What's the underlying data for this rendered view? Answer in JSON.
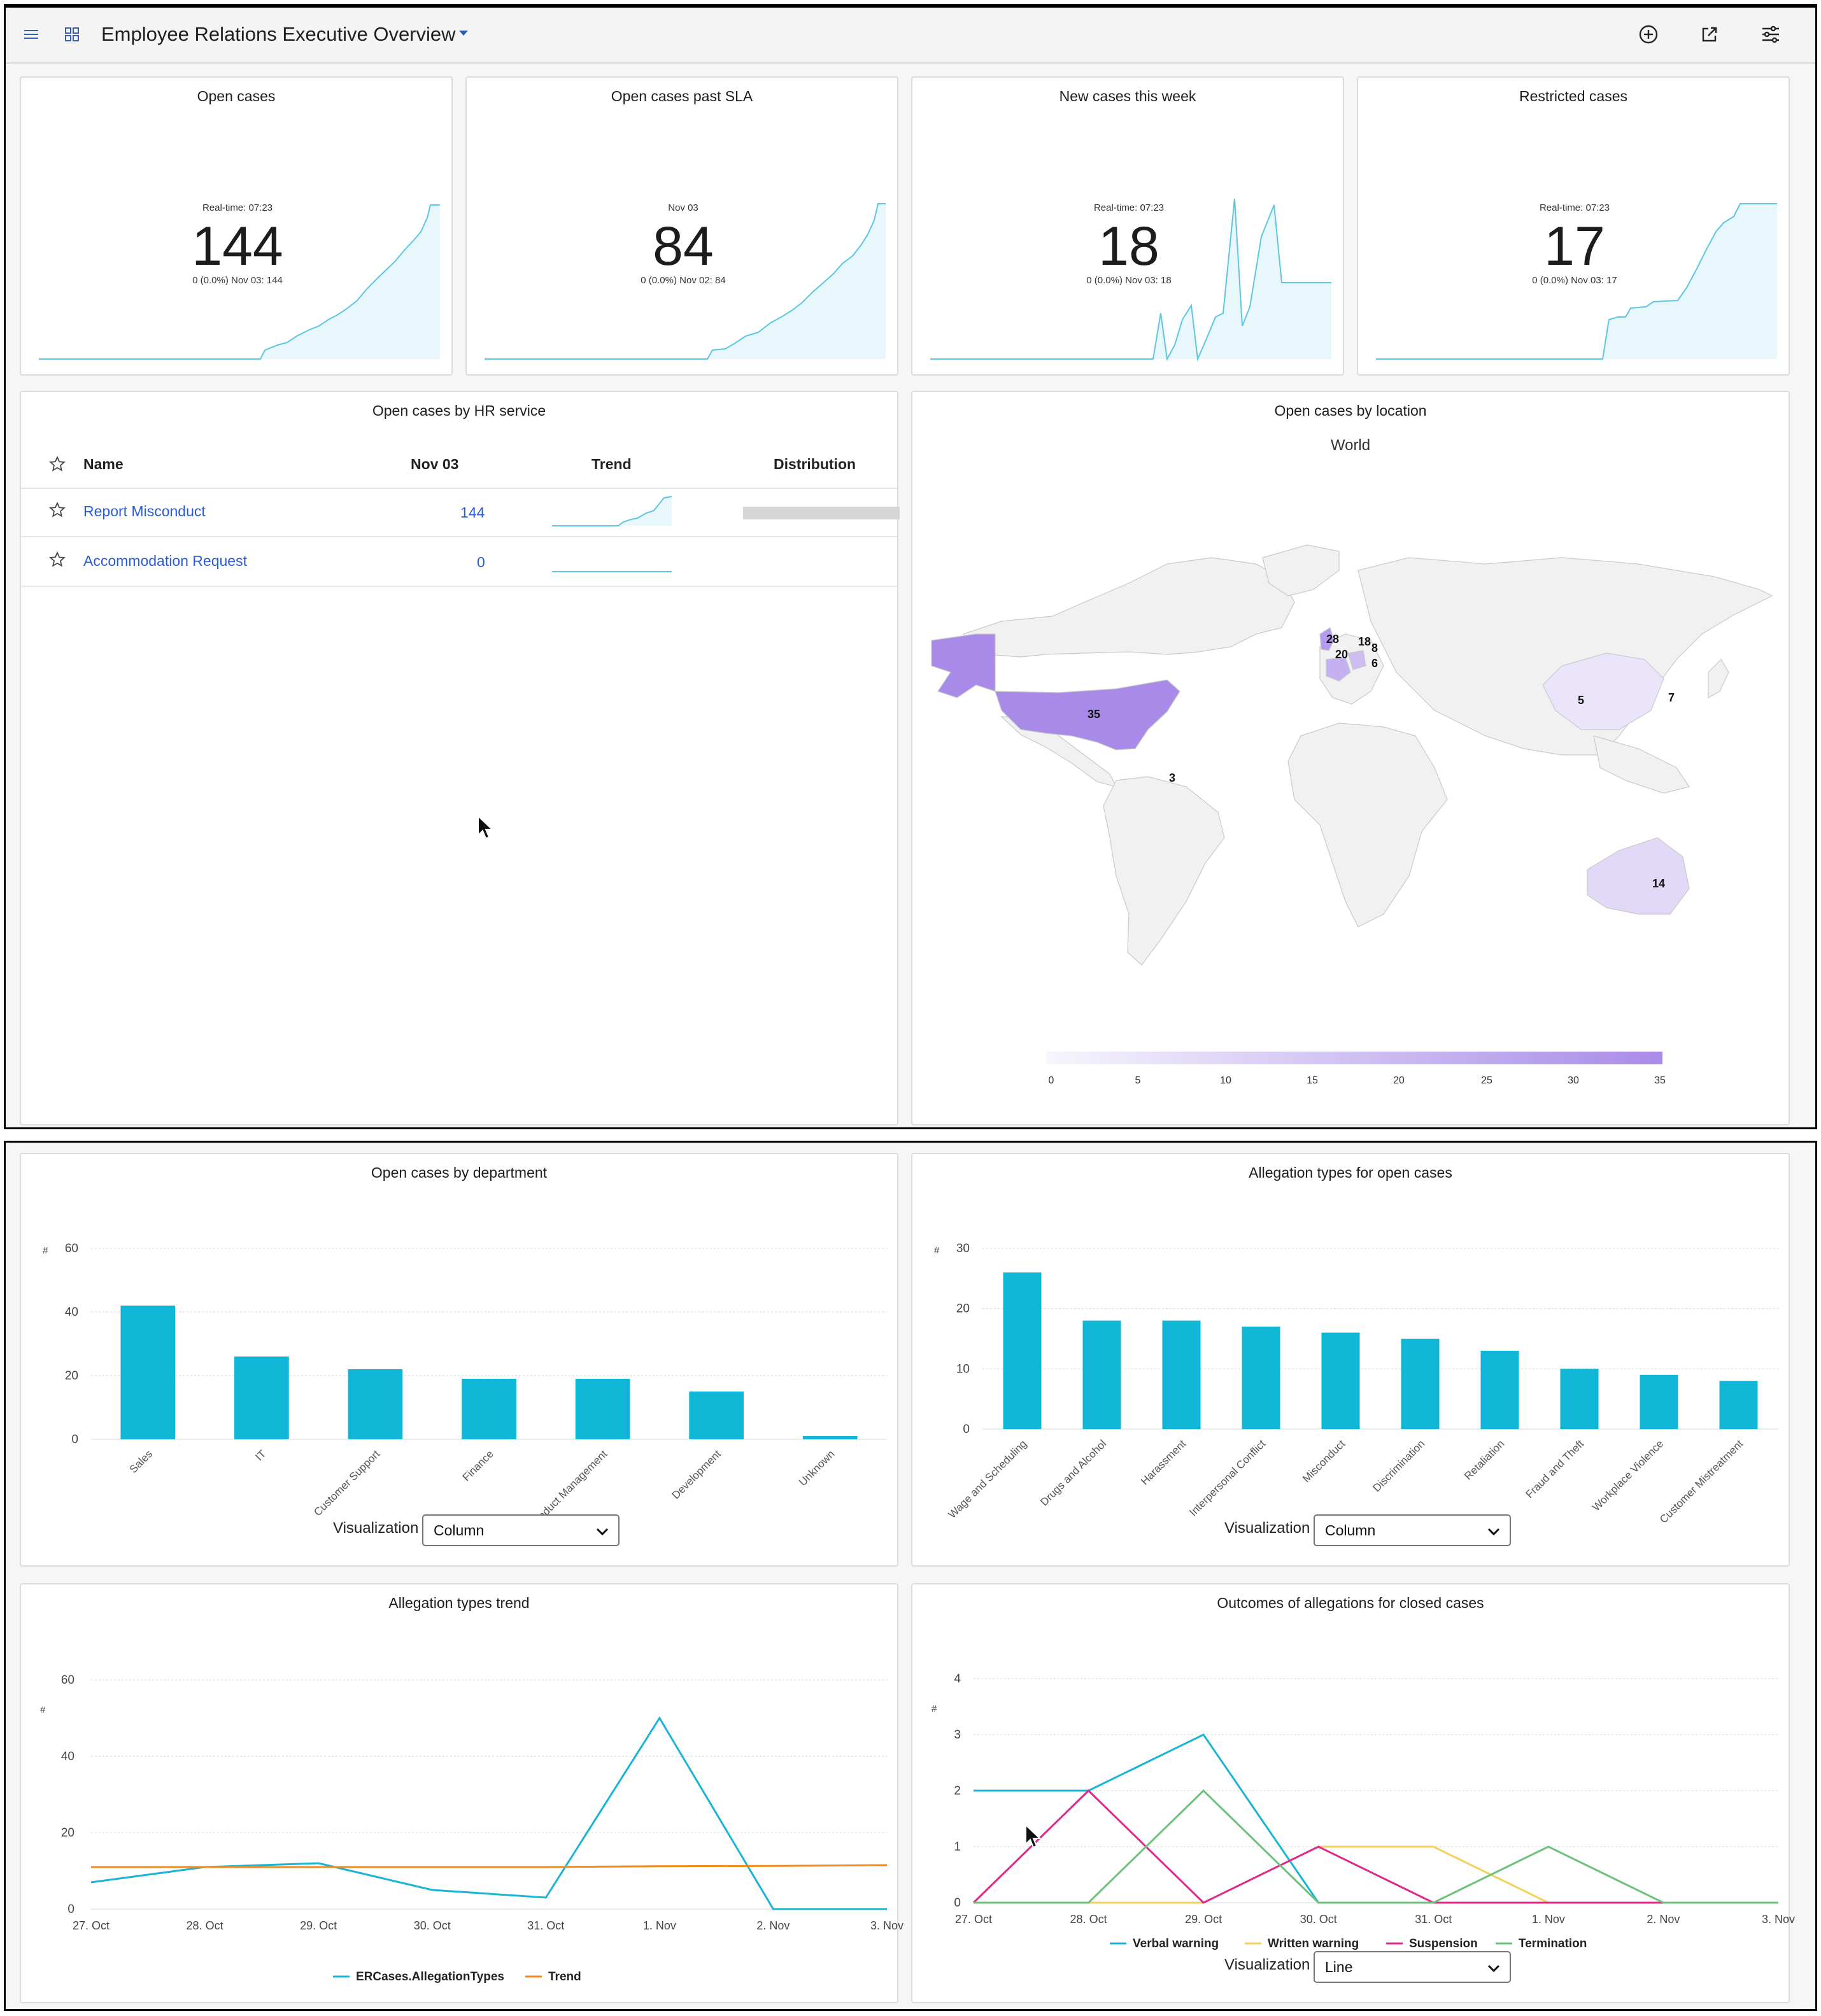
{
  "header": {
    "title": "Employee Relations Executive Overview",
    "menu_icon": "hamburger-icon",
    "grid_icon": "grid-icon",
    "actions": [
      "add-circle-icon",
      "share-icon",
      "filter-settings-icon"
    ]
  },
  "kpis": [
    {
      "title": "Open cases",
      "subtitle": "Real-time: 07:23",
      "value": "144",
      "meta": "0 (0.0%)   Nov 03: 144"
    },
    {
      "title": "Open cases past SLA",
      "subtitle": "Nov 03",
      "value": "84",
      "meta": "0 (0.0%)   Nov 02: 84"
    },
    {
      "title": "New cases this week",
      "subtitle": "Real-time: 07:23",
      "value": "18",
      "meta": "0 (0.0%)   Nov 03: 18"
    },
    {
      "title": "Restricted cases",
      "subtitle": "Real-time: 07:23",
      "value": "17",
      "meta": "0 (0.0%)   Nov 03: 17"
    }
  ],
  "hr_service": {
    "title": "Open cases by HR service",
    "columns": {
      "name": "Name",
      "date": "Nov 03",
      "trend": "Trend",
      "distribution": "Distribution"
    },
    "rows": [
      {
        "name": "Report Misconduct",
        "value": "144",
        "distribution_fraction": 1.0
      },
      {
        "name": "Accommodation Request",
        "value": "0",
        "distribution_fraction": 0.0
      }
    ]
  },
  "location": {
    "title": "Open cases by location",
    "map_title": "World",
    "labels": [
      "35",
      "28",
      "20",
      "18",
      "8",
      "6",
      "5",
      "7",
      "3",
      "14"
    ],
    "legend_ticks": [
      "0",
      "5",
      "10",
      "15",
      "20",
      "25",
      "30",
      "35"
    ],
    "colors": {
      "low": "#f7f5fd",
      "high": "#a88be8",
      "land": "#f1f1f1",
      "border": "#c9c9c9"
    }
  },
  "department": {
    "title": "Open cases by department",
    "viz_label": "Visualization",
    "viz_value": "Column"
  },
  "allegation_types": {
    "title": "Allegation types for open cases",
    "viz_label": "Visualization",
    "viz_value": "Column"
  },
  "allegation_trend": {
    "title": "Allegation types trend"
  },
  "outcomes": {
    "title": "Outcomes of allegations for closed cases",
    "viz_label": "Visualization",
    "viz_value": "Line"
  },
  "chart_data": [
    {
      "type": "bar",
      "title": "Open cases by department",
      "ylabel": "#",
      "categories": [
        "Sales",
        "IT",
        "Customer Support",
        "Finance",
        "Product Management",
        "Development",
        "Unknown"
      ],
      "values": [
        42,
        26,
        22,
        19,
        19,
        15,
        1
      ],
      "ylim": [
        0,
        60
      ],
      "yticks": [
        "0",
        "20",
        "40",
        "60"
      ],
      "color": "#0fb6d6",
      "grid": true
    },
    {
      "type": "bar",
      "title": "Allegation types for open cases",
      "ylabel": "#",
      "categories": [
        "Wage and Scheduling",
        "Drugs and Alcohol",
        "Harassment",
        "Interpersonal Conflict",
        "Misconduct",
        "Discrimination",
        "Retaliation",
        "Fraud and Theft",
        "Workplace Violence",
        "Customer Mistreatment"
      ],
      "values": [
        26,
        18,
        18,
        17,
        16,
        15,
        13,
        10,
        9,
        8
      ],
      "ylim": [
        0,
        30
      ],
      "yticks": [
        "0",
        "10",
        "20",
        "30"
      ],
      "color": "#0fb6d6",
      "grid": true
    },
    {
      "type": "line",
      "title": "Allegation types trend",
      "ylabel": "#",
      "x": [
        "27. Oct",
        "28. Oct",
        "29. Oct",
        "30. Oct",
        "31. Oct",
        "1. Nov",
        "2. Nov",
        "3. Nov"
      ],
      "ylim": [
        0,
        60
      ],
      "yticks": [
        "0",
        "20",
        "40",
        "60"
      ],
      "series": [
        {
          "name": "ERCases.AllegationTypes",
          "values": [
            7,
            11,
            12,
            5,
            3,
            50,
            0,
            0
          ],
          "color": "#19b4d6"
        },
        {
          "name": "Trend",
          "values": [
            11,
            11,
            11,
            11,
            11,
            11.2,
            11.3,
            11.5
          ],
          "color": "#f08c1e"
        }
      ],
      "legend": "bottom-center",
      "grid": true
    },
    {
      "type": "line",
      "title": "Outcomes of allegations for closed cases",
      "ylabel": "#",
      "x": [
        "27. Oct",
        "28. Oct",
        "29. Oct",
        "30. Oct",
        "31. Oct",
        "1. Nov",
        "2. Nov",
        "3. Nov"
      ],
      "ylim": [
        0,
        4
      ],
      "yticks": [
        "0",
        "1",
        "2",
        "3",
        "4"
      ],
      "series": [
        {
          "name": "Verbal warning",
          "values": [
            2,
            2,
            3,
            0,
            0,
            0,
            0,
            0
          ],
          "color": "#19b4d6"
        },
        {
          "name": "Written warning",
          "values": [
            0,
            0,
            0,
            1,
            1,
            0,
            0,
            0
          ],
          "color": "#f5d060"
        },
        {
          "name": "Suspension",
          "values": [
            0,
            2,
            0,
            1,
            0,
            0,
            0,
            0
          ],
          "color": "#e0288c"
        },
        {
          "name": "Termination",
          "values": [
            0,
            0,
            2,
            0,
            0,
            1,
            0,
            0
          ],
          "color": "#6cc27a"
        }
      ],
      "legend": "bottom-center",
      "grid": true
    }
  ]
}
